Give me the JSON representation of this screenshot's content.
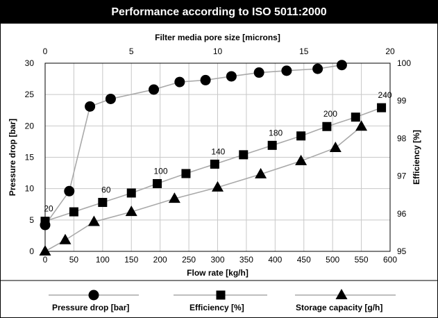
{
  "page": {
    "title": "Performance according to ISO 5011:2000"
  },
  "colors": {
    "series_line": "#a9a9a9",
    "marker": "#000000",
    "title_bg": "#000000",
    "title_text": "#ffffff"
  },
  "chart_data": {
    "type": "line",
    "title": "Performance according to ISO 5011:2000",
    "xlabel": "Flow rate [kg/h]",
    "x_top_label": "Filter media pore size [microns]",
    "ylabel": "Pressure drop [bar]",
    "y2label": "Efficiency [%]",
    "xlim": [
      0,
      600
    ],
    "x_top_lim": [
      0,
      20
    ],
    "ylim": [
      0,
      30
    ],
    "y2lim": [
      95,
      100
    ],
    "x_ticks": [
      "0",
      "50",
      "100",
      "150",
      "200",
      "250",
      "300",
      "350",
      "400",
      "450",
      "500",
      "550",
      "600"
    ],
    "x_top_ticks": [
      "0",
      "5",
      "10",
      "15",
      "20"
    ],
    "y_ticks": [
      "0",
      "5",
      "10",
      "15",
      "20",
      "25",
      "30"
    ],
    "y2_ticks": [
      "95",
      "96",
      "97",
      "98",
      "99",
      "100"
    ],
    "grid": true,
    "legend_position": "bottom",
    "series": [
      {
        "name": "Pressure drop [bar]",
        "marker": "circle",
        "axis": "top-x/right-y",
        "points": [
          [
            0,
            95.7
          ],
          [
            1.4,
            96.6
          ],
          [
            2.6,
            98.85
          ],
          [
            3.8,
            99.05
          ],
          [
            6.3,
            99.3
          ],
          [
            7.8,
            99.5
          ],
          [
            9.3,
            99.55
          ],
          [
            10.8,
            99.65
          ],
          [
            12.4,
            99.75
          ],
          [
            14.0,
            99.8
          ],
          [
            15.8,
            99.85
          ],
          [
            17.2,
            99.95
          ]
        ]
      },
      {
        "name": "Efficiency [%]",
        "marker": "square",
        "axis": "bottom-x/left-y",
        "points": [
          [
            0,
            4.8
          ],
          [
            50,
            6.3
          ],
          [
            100,
            7.8
          ],
          [
            150,
            9.3
          ],
          [
            195,
            10.8
          ],
          [
            245,
            12.4
          ],
          [
            295,
            13.9
          ],
          [
            345,
            15.4
          ],
          [
            395,
            16.9
          ],
          [
            445,
            18.4
          ],
          [
            490,
            19.9
          ],
          [
            540,
            21.4
          ],
          [
            585,
            22.9
          ]
        ],
        "labels": [
          "20",
          "60",
          "100",
          "140",
          "180",
          "200",
          "240"
        ],
        "label_x": [
          0,
          100,
          195,
          295,
          395,
          490,
          585
        ]
      },
      {
        "name": "Storage capacity [g/h]",
        "marker": "triangle",
        "axis": "bottom-x/left-y",
        "points": [
          [
            0,
            0
          ],
          [
            35,
            1.8
          ],
          [
            85,
            4.7
          ],
          [
            150,
            6.3
          ],
          [
            225,
            8.4
          ],
          [
            300,
            10.2
          ],
          [
            375,
            12.3
          ],
          [
            445,
            14.4
          ],
          [
            505,
            16.5
          ],
          [
            550,
            19.9
          ]
        ]
      }
    ]
  }
}
